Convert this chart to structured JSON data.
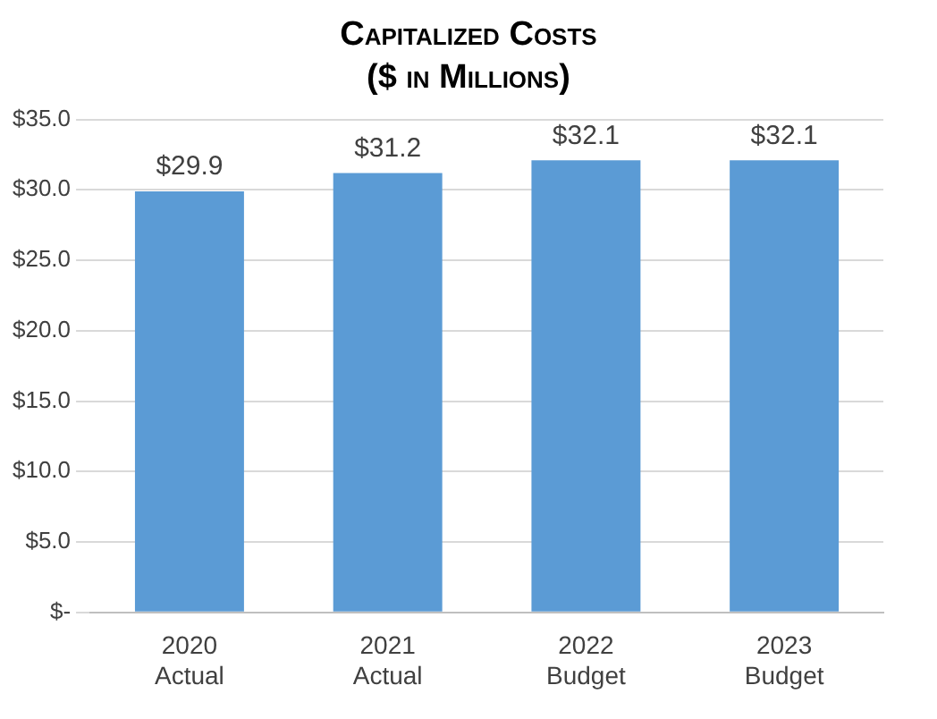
{
  "chart_data": {
    "type": "bar",
    "title": "Capitalized Costs",
    "subtitle": "($ in Millions)",
    "categories": [
      "2020 Actual",
      "2021 Actual",
      "2022 Budget",
      "2023 Budget"
    ],
    "values": [
      29.9,
      31.2,
      32.1,
      32.1
    ],
    "color": "#5b9bd5",
    "value_labels": [
      "$29.9",
      "$31.2",
      "$32.1",
      "$32.1"
    ],
    "ylim": [
      0,
      35
    ],
    "yticks": [
      {
        "value": 0,
        "label": "$-"
      },
      {
        "value": 5,
        "label": "$5.0"
      },
      {
        "value": 10,
        "label": "$10.0"
      },
      {
        "value": 15,
        "label": "$15.0"
      },
      {
        "value": 20,
        "label": "$20.0"
      },
      {
        "value": 25,
        "label": "$25.0"
      },
      {
        "value": 30,
        "label": "$30.0"
      },
      {
        "value": 35,
        "label": "$35.0"
      }
    ],
    "grid": "y",
    "legend": false
  }
}
